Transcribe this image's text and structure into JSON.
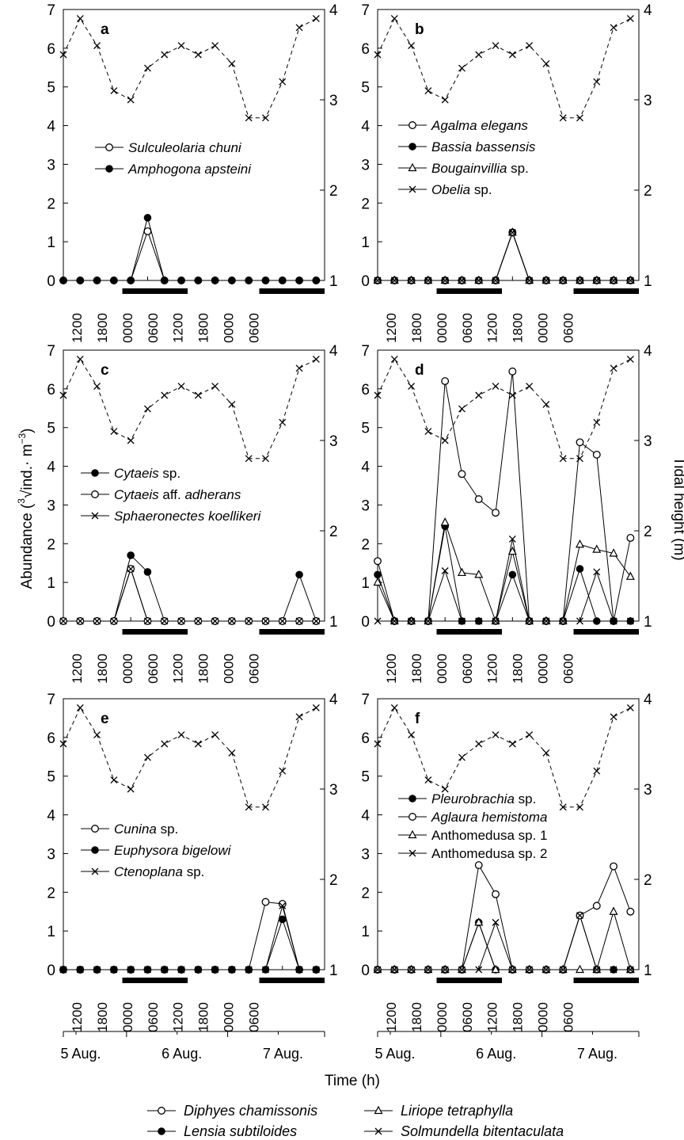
{
  "figure": {
    "y_left_label": "Abundance (∛ind.·m⁻³)",
    "y_left_label_prefix": "Abundance (",
    "y_left_label_root_index": "3",
    "y_left_label_radicand": "ind.· m",
    "y_left_label_exponent": "−3",
    "y_left_label_suffix": ")",
    "y_right_label": "Tidal height (m)",
    "x_label": "Time (h)",
    "date_labels": [
      "5 Aug.",
      "6 Aug.",
      "7 Aug."
    ],
    "time_tick_labels": [
      "1200",
      "1800",
      "0000",
      "0600",
      "1200",
      "1800",
      "0000",
      "0600"
    ],
    "y_left_ticks": [
      0,
      1,
      2,
      3,
      4,
      5,
      6,
      7
    ],
    "y_right_ticks": [
      1,
      2,
      3,
      4
    ],
    "bottom_legend": [
      {
        "name": "Diphyes chamissonis",
        "marker": "open-circle"
      },
      {
        "name": "Liriope tetraphylla",
        "marker": "open-triangle"
      },
      {
        "name": "Lensia subtiloides",
        "marker": "filled-circle"
      },
      {
        "name": "Solmundella bitentaculata",
        "marker": "cross"
      }
    ],
    "colors": {
      "ink": "#000000",
      "background": "#ffffff"
    }
  },
  "chart_data": [
    {
      "panel": "a",
      "type": "line",
      "x_hours": [
        9,
        13,
        17,
        21,
        25,
        29,
        33,
        37,
        41,
        45,
        49,
        53,
        57,
        61,
        65,
        69
      ],
      "ylim": [
        0,
        7
      ],
      "y2lim": [
        1,
        4
      ],
      "night_bars_hours": [
        [
          23,
          38.5
        ],
        [
          55.5,
          71
        ]
      ],
      "tide": {
        "name": "Tidal height",
        "values": [
          3.5,
          3.9,
          3.6,
          3.1,
          3.0,
          3.35,
          3.5,
          3.6,
          3.5,
          3.6,
          3.4,
          2.8,
          2.8,
          3.2,
          3.8,
          3.9
        ]
      },
      "series": [
        {
          "name": "Sulculeolaria chuni",
          "marker": "open-circle",
          "values": [
            0,
            0,
            0,
            0,
            0,
            1.27,
            0,
            0,
            0,
            0,
            0,
            0,
            0,
            0,
            0,
            0
          ]
        },
        {
          "name": "Amphogona apsteini",
          "marker": "filled-circle",
          "values": [
            0,
            0,
            0,
            0,
            0,
            1.62,
            0,
            0,
            0,
            0,
            0,
            0,
            0,
            0,
            0,
            0
          ]
        }
      ]
    },
    {
      "panel": "b",
      "type": "line",
      "x_hours": [
        9,
        13,
        17,
        21,
        25,
        29,
        33,
        37,
        41,
        45,
        49,
        53,
        57,
        61,
        65,
        69
      ],
      "ylim": [
        0,
        7
      ],
      "y2lim": [
        1,
        4
      ],
      "night_bars_hours": [
        [
          23,
          38.5
        ],
        [
          55.5,
          71
        ]
      ],
      "tide": {
        "name": "Tidal height",
        "values": [
          3.5,
          3.9,
          3.6,
          3.1,
          3.0,
          3.35,
          3.5,
          3.6,
          3.5,
          3.6,
          3.4,
          2.8,
          2.8,
          3.2,
          3.8,
          3.9
        ]
      },
      "series": [
        {
          "name": "Agalma elegans",
          "marker": "open-circle",
          "values": [
            0,
            0,
            0,
            0,
            0,
            0,
            0,
            0,
            1.24,
            0,
            0,
            0,
            0,
            0,
            0,
            0
          ]
        },
        {
          "name": "Bassia bassensis",
          "marker": "filled-circle",
          "values": [
            0,
            0,
            0,
            0,
            0,
            0,
            0,
            0,
            1.24,
            0,
            0,
            0,
            0,
            0,
            0,
            0
          ]
        },
        {
          "name": "Bougainvillia sp.",
          "marker": "open-triangle",
          "values": [
            0,
            0,
            0,
            0,
            0,
            0,
            0,
            0,
            1.24,
            0,
            0,
            0,
            0,
            0,
            0,
            0
          ]
        },
        {
          "name": "Obelia sp.",
          "marker": "cross",
          "values": [
            0,
            0,
            0,
            0,
            0,
            0,
            0,
            0,
            1.24,
            0,
            0,
            0,
            0,
            0,
            0,
            0
          ]
        }
      ]
    },
    {
      "panel": "c",
      "type": "line",
      "x_hours": [
        9,
        13,
        17,
        21,
        25,
        29,
        33,
        37,
        41,
        45,
        49,
        53,
        57,
        61,
        65,
        69
      ],
      "ylim": [
        0,
        7
      ],
      "y2lim": [
        1,
        4
      ],
      "night_bars_hours": [
        [
          23,
          38.5
        ],
        [
          55.5,
          71
        ]
      ],
      "tide": {
        "name": "Tidal height",
        "values": [
          3.5,
          3.9,
          3.6,
          3.1,
          3.0,
          3.35,
          3.5,
          3.6,
          3.5,
          3.6,
          3.4,
          2.8,
          2.8,
          3.2,
          3.8,
          3.9
        ]
      },
      "series": [
        {
          "name": "Cytaeis sp.",
          "marker": "filled-circle",
          "values": [
            0,
            0,
            0,
            0,
            1.7,
            1.27,
            0,
            0,
            0,
            0,
            0,
            0,
            0,
            0,
            1.2,
            0
          ]
        },
        {
          "name": "Cytaeis aff. adherans",
          "marker": "open-circle",
          "values": [
            0,
            0,
            0,
            0,
            1.35,
            0,
            0,
            0,
            0,
            0,
            0,
            0,
            0,
            0,
            0,
            0
          ]
        },
        {
          "name": "Sphaeronectes koellikeri",
          "marker": "cross",
          "values": [
            0,
            0,
            0,
            0,
            1.35,
            0,
            0,
            0,
            0,
            0,
            0,
            0,
            0,
            0,
            0,
            0
          ]
        }
      ]
    },
    {
      "panel": "d",
      "type": "line",
      "x_hours": [
        9,
        13,
        17,
        21,
        25,
        29,
        33,
        37,
        41,
        45,
        49,
        53,
        57,
        61,
        65,
        69
      ],
      "ylim": [
        0,
        7
      ],
      "y2lim": [
        1,
        4
      ],
      "night_bars_hours": [
        [
          23,
          38.5
        ],
        [
          55.5,
          71
        ]
      ],
      "tide": {
        "name": "Tidal height",
        "values": [
          3.5,
          3.9,
          3.6,
          3.1,
          3.0,
          3.35,
          3.5,
          3.6,
          3.5,
          3.6,
          3.4,
          2.8,
          2.8,
          3.2,
          3.8,
          3.9
        ]
      },
      "series": [
        {
          "name": "Diphyes chamissonis",
          "marker": "open-circle",
          "values": [
            1.55,
            0,
            0,
            0,
            6.2,
            3.8,
            3.15,
            2.8,
            6.45,
            0,
            0,
            0,
            4.62,
            4.3,
            0,
            2.15
          ]
        },
        {
          "name": "Lensia subtiloides",
          "marker": "filled-circle",
          "values": [
            1.2,
            0,
            0,
            0,
            2.45,
            0,
            0,
            0,
            1.2,
            0,
            0,
            0,
            1.35,
            0,
            0,
            0
          ]
        },
        {
          "name": "Liriope tetraphylla",
          "marker": "open-triangle",
          "values": [
            1.0,
            0,
            0,
            0,
            2.55,
            1.25,
            1.2,
            0,
            1.8,
            0,
            0,
            0,
            1.98,
            1.85,
            1.75,
            1.15
          ]
        },
        {
          "name": "Solmundella bitentaculata",
          "marker": "cross",
          "values": [
            0,
            0,
            0,
            0,
            1.3,
            0,
            0,
            0,
            2.12,
            0,
            0,
            0,
            0,
            1.27,
            0,
            0
          ]
        }
      ]
    },
    {
      "panel": "e",
      "type": "line",
      "x_hours": [
        9,
        13,
        17,
        21,
        25,
        29,
        33,
        37,
        41,
        45,
        49,
        53,
        57,
        61,
        65,
        69
      ],
      "ylim": [
        0,
        7
      ],
      "y2lim": [
        1,
        4
      ],
      "night_bars_hours": [
        [
          23,
          38.5
        ],
        [
          55.5,
          71
        ]
      ],
      "tide": {
        "name": "Tidal height",
        "values": [
          3.5,
          3.9,
          3.6,
          3.1,
          3.0,
          3.35,
          3.5,
          3.6,
          3.5,
          3.6,
          3.4,
          2.8,
          2.8,
          3.2,
          3.8,
          3.9
        ]
      },
      "series": [
        {
          "name": "Cunina sp.",
          "marker": "open-circle",
          "values": [
            0,
            0,
            0,
            0,
            0,
            0,
            0,
            0,
            0,
            0,
            0,
            0,
            1.75,
            1.7,
            0,
            0
          ]
        },
        {
          "name": "Euphysora bigelowi",
          "marker": "filled-circle",
          "values": [
            0,
            0,
            0,
            0,
            0,
            0,
            0,
            0,
            0,
            0,
            0,
            0,
            0,
            1.3,
            0,
            0
          ]
        },
        {
          "name": "Ctenoplana sp.",
          "marker": "cross",
          "values": [
            0,
            0,
            0,
            0,
            0,
            0,
            0,
            0,
            0,
            0,
            0,
            0,
            0,
            1.65,
            0,
            0
          ]
        }
      ]
    },
    {
      "panel": "f",
      "type": "line",
      "x_hours": [
        9,
        13,
        17,
        21,
        25,
        29,
        33,
        37,
        41,
        45,
        49,
        53,
        57,
        61,
        65,
        69
      ],
      "ylim": [
        0,
        7
      ],
      "y2lim": [
        1,
        4
      ],
      "night_bars_hours": [
        [
          23,
          38.5
        ],
        [
          55.5,
          71
        ]
      ],
      "tide": {
        "name": "Tidal height",
        "values": [
          3.5,
          3.9,
          3.6,
          3.1,
          3.0,
          3.35,
          3.5,
          3.6,
          3.5,
          3.6,
          3.4,
          2.8,
          2.8,
          3.2,
          3.8,
          3.9
        ]
      },
      "series": [
        {
          "name": "Pleurobrachia sp.",
          "marker": "filled-circle",
          "values": [
            0,
            0,
            0,
            0,
            0,
            0,
            1.22,
            0,
            0,
            0,
            0,
            0,
            1.4,
            0,
            0,
            0
          ]
        },
        {
          "name": "Aglaura hemistoma",
          "marker": "open-circle",
          "values": [
            0,
            0,
            0,
            0,
            0,
            0,
            2.7,
            1.95,
            0,
            0,
            0,
            0,
            1.4,
            1.65,
            2.67,
            1.5
          ]
        },
        {
          "name": "Anthomedusa sp. 1",
          "marker": "open-triangle",
          "values": [
            0,
            0,
            0,
            0,
            0,
            0,
            1.22,
            0,
            0,
            0,
            0,
            0,
            0,
            0,
            1.5,
            0
          ]
        },
        {
          "name": "Anthomedusa sp. 2",
          "marker": "cross",
          "values": [
            0,
            0,
            0,
            0,
            0,
            0,
            0,
            1.22,
            0,
            0,
            0,
            0,
            1.4,
            0,
            0,
            0
          ]
        }
      ]
    }
  ]
}
